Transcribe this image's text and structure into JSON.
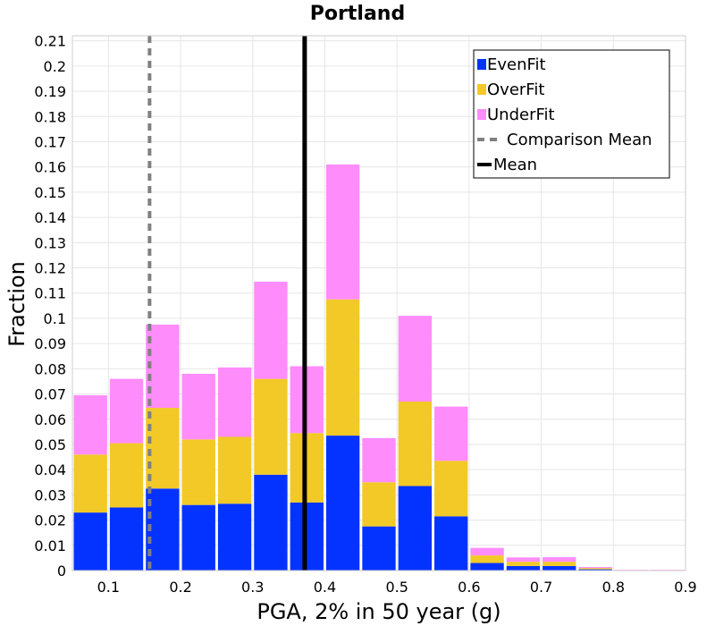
{
  "chart_data": {
    "type": "bar",
    "stacked": true,
    "title": "Portland",
    "xlabel": "PGA, 2% in 50 year (g)",
    "ylabel": "Fraction",
    "xlim": [
      0.05,
      0.9
    ],
    "ylim": [
      0,
      0.212
    ],
    "grid": true,
    "legend_position": "top-right",
    "bin_width": 0.05,
    "x": [
      0.075,
      0.125,
      0.175,
      0.225,
      0.275,
      0.325,
      0.375,
      0.425,
      0.475,
      0.525,
      0.575,
      0.625,
      0.675,
      0.725,
      0.775,
      0.825,
      0.875
    ],
    "x_ticks": [
      0.1,
      0.2,
      0.3,
      0.4,
      0.5,
      0.6,
      0.7,
      0.8,
      0.9
    ],
    "x_tick_labels": [
      "0.1",
      "0.2",
      "0.3",
      "0.4",
      "0.5",
      "0.6",
      "0.7",
      "0.8",
      "0.9"
    ],
    "y_ticks": [
      0,
      0.01,
      0.02,
      0.03,
      0.04,
      0.05,
      0.06,
      0.07,
      0.08,
      0.09,
      0.1,
      0.11,
      0.12,
      0.13,
      0.14,
      0.15,
      0.16,
      0.17,
      0.18,
      0.19,
      0.2,
      0.21
    ],
    "y_tick_labels": [
      "0",
      "0.01",
      "0.02",
      "0.03",
      "0.04",
      "0.05",
      "0.06",
      "0.07",
      "0.08",
      "0.09",
      "0.1",
      "0.11",
      "0.12",
      "0.13",
      "0.14",
      "0.15",
      "0.16",
      "0.17",
      "0.18",
      "0.19",
      "0.2",
      "0.21"
    ],
    "series": [
      {
        "name": "EvenFit",
        "color": "#0433ff",
        "values": [
          0.023,
          0.025,
          0.0325,
          0.026,
          0.0265,
          0.038,
          0.027,
          0.0535,
          0.0175,
          0.0335,
          0.0215,
          0.003,
          0.0018,
          0.0018,
          0.0005,
          0.0001,
          0.0001
        ]
      },
      {
        "name": "OverFit",
        "color": "#f2c927",
        "values": [
          0.023,
          0.0255,
          0.032,
          0.026,
          0.0265,
          0.038,
          0.0275,
          0.054,
          0.0175,
          0.0335,
          0.022,
          0.003,
          0.0017,
          0.0017,
          0.0005,
          0.0001,
          0.0001
        ]
      },
      {
        "name": "UnderFit",
        "color": "#ff8cfb",
        "values": [
          0.0235,
          0.0255,
          0.033,
          0.026,
          0.0275,
          0.0385,
          0.0265,
          0.0535,
          0.0175,
          0.034,
          0.0215,
          0.003,
          0.0017,
          0.0018,
          0.0004,
          0.0001,
          0.0001
        ]
      }
    ],
    "lines": [
      {
        "name": "Comparison Mean",
        "x": 0.157,
        "color": "#808080",
        "style": "dashed"
      },
      {
        "name": "Mean",
        "x": 0.372,
        "color": "#000000",
        "style": "solid"
      }
    ],
    "legend": [
      "EvenFit",
      "OverFit",
      "UnderFit",
      "Comparison Mean",
      "Mean"
    ]
  }
}
